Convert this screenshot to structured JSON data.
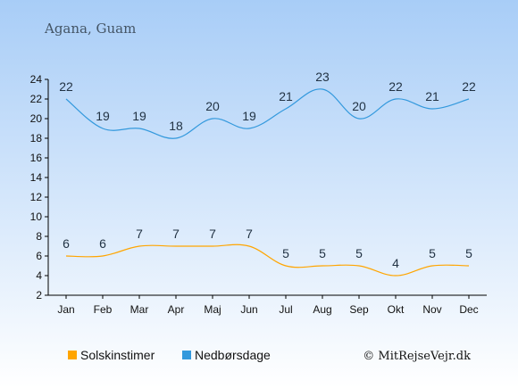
{
  "chart_data": {
    "type": "line",
    "title": "Agana, Guam",
    "categories": [
      "Jan",
      "Feb",
      "Mar",
      "Apr",
      "Maj",
      "Jun",
      "Jul",
      "Aug",
      "Sep",
      "Okt",
      "Nov",
      "Dec"
    ],
    "yticks": [
      2,
      4,
      6,
      8,
      10,
      12,
      14,
      16,
      18,
      20,
      22,
      24
    ],
    "ylim": [
      2,
      24
    ],
    "grid": false,
    "legend_position": "bottom",
    "series": [
      {
        "name": "Solskinstimer",
        "color": "#ffa500",
        "values": [
          6,
          6,
          7,
          7,
          7,
          7,
          5,
          5,
          5,
          4,
          5,
          5
        ]
      },
      {
        "name": "Nedbørsdage",
        "color": "#3399dd",
        "values": [
          22,
          19,
          19,
          18,
          20,
          19,
          21,
          23,
          20,
          22,
          21,
          22
        ]
      }
    ],
    "credit": "© MitRejseVejr.dk"
  }
}
